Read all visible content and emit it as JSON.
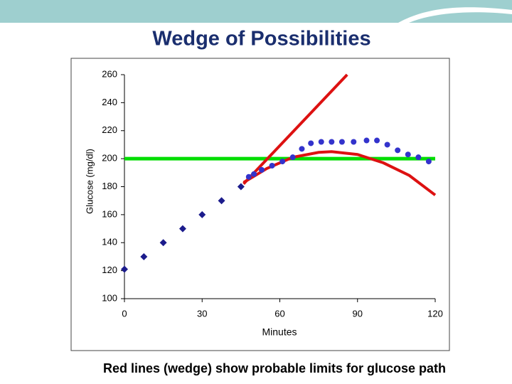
{
  "chart_data": {
    "type": "line",
    "title": "Wedge of Possibilities",
    "x_label": "Minutes",
    "y_label": "Glucose (mg/dl)",
    "caption": "Red lines (wedge) show probable limits for glucose path",
    "xlim": [
      0,
      120
    ],
    "xticks": [
      0,
      30,
      60,
      90,
      120
    ],
    "ylim": [
      100,
      260
    ],
    "yticks": [
      100,
      120,
      140,
      160,
      180,
      200,
      220,
      240,
      260
    ],
    "grid": false,
    "series": [
      {
        "color": "#1c1c8c",
        "marker": "diamond",
        "line": false,
        "x": [
          0,
          7.5,
          15,
          22.5,
          30,
          37.5,
          45
        ],
        "values": [
          121,
          130,
          140,
          150,
          160,
          170,
          180
        ]
      },
      {
        "color": "#00dd00",
        "marker": "none",
        "line": true,
        "width": 5,
        "x": [
          0,
          120
        ],
        "values": [
          200,
          200
        ]
      },
      {
        "color": "#dd1111",
        "marker": "none",
        "line": true,
        "width": 4,
        "x": [
          46,
          86
        ],
        "values": [
          182,
          260
        ]
      },
      {
        "color": "#dd1111",
        "marker": "none",
        "line": true,
        "width": 4,
        "x": [
          46,
          55,
          65,
          75,
          80,
          90,
          100,
          110,
          120
        ],
        "values": [
          183,
          193,
          201,
          204.5,
          205,
          203,
          197,
          188,
          174
        ]
      },
      {
        "color": "#3333cc",
        "marker": "circle",
        "line": false,
        "x": [
          48,
          50,
          53,
          57,
          61,
          65,
          68.5,
          72,
          76,
          80,
          84,
          88.5,
          93.5,
          97.5,
          101.5,
          105.5,
          109.5,
          113.5,
          117.5
        ],
        "values": [
          187,
          189,
          192,
          195,
          198,
          201,
          207,
          211,
          212,
          212,
          212,
          212,
          213,
          213,
          210,
          206,
          203,
          201,
          198
        ]
      }
    ]
  }
}
